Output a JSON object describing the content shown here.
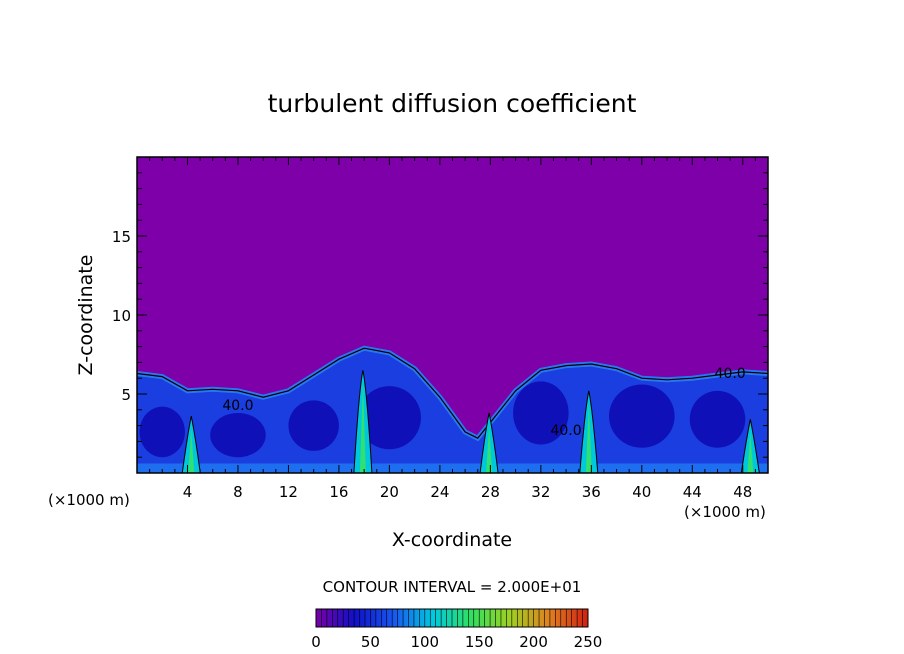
{
  "chart_data": {
    "type": "heatmap",
    "title": "turbulent diffusion coefficient",
    "xlabel": "X-coordinate",
    "ylabel": "Z-coordinate",
    "x_unit_left": "(×1000 m)",
    "x_unit_right": "(×1000 m)",
    "xlim": [
      0,
      50
    ],
    "ylim": [
      0,
      20
    ],
    "x_ticks": [
      {
        "value": 4,
        "label": "4"
      },
      {
        "value": 8,
        "label": "8"
      },
      {
        "value": 12,
        "label": "12"
      },
      {
        "value": 16,
        "label": "16"
      },
      {
        "value": 20,
        "label": "20"
      },
      {
        "value": 24,
        "label": "24"
      },
      {
        "value": 28,
        "label": "28"
      },
      {
        "value": 32,
        "label": "32"
      },
      {
        "value": 36,
        "label": "36"
      },
      {
        "value": 40,
        "label": "40"
      },
      {
        "value": 44,
        "label": "44"
      },
      {
        "value": 48,
        "label": "48"
      }
    ],
    "y_ticks": [
      {
        "value": 5,
        "label": "5"
      },
      {
        "value": 10,
        "label": "10"
      },
      {
        "value": 15,
        "label": "15"
      }
    ],
    "contour_interval_text": "CONTOUR INTERVAL = 2.000E+01",
    "contour_interval": 20,
    "colorbar": {
      "range": [
        0,
        250
      ],
      "ticks": [
        {
          "value": 0,
          "label": "0"
        },
        {
          "value": 50,
          "label": "50"
        },
        {
          "value": 100,
          "label": "100"
        },
        {
          "value": 150,
          "label": "150"
        },
        {
          "value": 200,
          "label": "200"
        },
        {
          "value": 250,
          "label": "250"
        }
      ],
      "colors": [
        "#7a00a8",
        "#1010c8",
        "#1858f0",
        "#00c8e0",
        "#30e060",
        "#a0d020",
        "#e08020",
        "#d02010"
      ]
    },
    "background_color": "#7d00a8",
    "contour_labels": [
      {
        "x": 8,
        "z": 4,
        "text": "40.0"
      },
      {
        "x": 34,
        "z": 2.4,
        "text": "40.0"
      },
      {
        "x": 47,
        "z": 6,
        "text": "40.0"
      }
    ],
    "mixed_layer_top": [
      {
        "x": 0,
        "z": 6.3
      },
      {
        "x": 2,
        "z": 6.1
      },
      {
        "x": 4,
        "z": 5.2
      },
      {
        "x": 6,
        "z": 5.3
      },
      {
        "x": 8,
        "z": 5.2
      },
      {
        "x": 10,
        "z": 4.8
      },
      {
        "x": 12,
        "z": 5.2
      },
      {
        "x": 14,
        "z": 6.2
      },
      {
        "x": 16,
        "z": 7.2
      },
      {
        "x": 18,
        "z": 7.9
      },
      {
        "x": 20,
        "z": 7.6
      },
      {
        "x": 22,
        "z": 6.6
      },
      {
        "x": 24,
        "z": 4.8
      },
      {
        "x": 26,
        "z": 2.6
      },
      {
        "x": 27,
        "z": 2.2
      },
      {
        "x": 28,
        "z": 3.2
      },
      {
        "x": 30,
        "z": 5.2
      },
      {
        "x": 32,
        "z": 6.5
      },
      {
        "x": 34,
        "z": 6.8
      },
      {
        "x": 36,
        "z": 6.9
      },
      {
        "x": 38,
        "z": 6.6
      },
      {
        "x": 40,
        "z": 6.0
      },
      {
        "x": 42,
        "z": 5.9
      },
      {
        "x": 44,
        "z": 6.0
      },
      {
        "x": 46,
        "z": 6.2
      },
      {
        "x": 48,
        "z": 6.4
      },
      {
        "x": 50,
        "z": 6.3
      }
    ],
    "updraft_columns": [
      {
        "x": 4.3,
        "z_top": 3.6
      },
      {
        "x": 17.9,
        "z_top": 6.5
      },
      {
        "x": 27.9,
        "z_top": 3.8
      },
      {
        "x": 35.8,
        "z_top": 5.2
      },
      {
        "x": 48.6,
        "z_top": 3.4
      }
    ],
    "grid": false,
    "legend": "colorbar-bottom"
  }
}
